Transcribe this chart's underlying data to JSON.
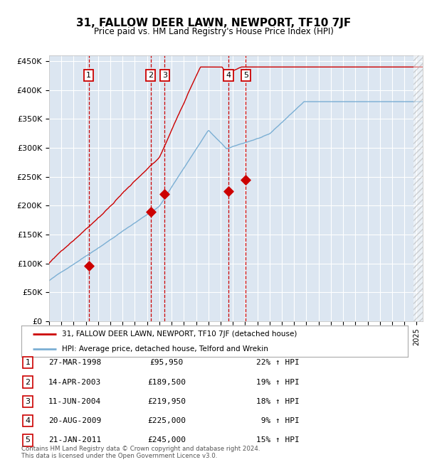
{
  "title": "31, FALLOW DEER LAWN, NEWPORT, TF10 7JF",
  "subtitle": "Price paid vs. HM Land Registry's House Price Index (HPI)",
  "footnote1": "Contains HM Land Registry data © Crown copyright and database right 2024.",
  "footnote2": "This data is licensed under the Open Government Licence v3.0.",
  "legend_red": "31, FALLOW DEER LAWN, NEWPORT, TF10 7JF (detached house)",
  "legend_blue": "HPI: Average price, detached house, Telford and Wrekin",
  "table": [
    {
      "num": "1",
      "date": "27-MAR-1998",
      "price": "£95,950",
      "hpi": "22% ↑ HPI"
    },
    {
      "num": "2",
      "date": "14-APR-2003",
      "price": "£189,500",
      "hpi": "19% ↑ HPI"
    },
    {
      "num": "3",
      "date": "11-JUN-2004",
      "price": "£219,950",
      "hpi": "18% ↑ HPI"
    },
    {
      "num": "4",
      "date": "20-AUG-2009",
      "price": "£225,000",
      "hpi": " 9% ↑ HPI"
    },
    {
      "num": "5",
      "date": "21-JAN-2011",
      "price": "£245,000",
      "hpi": "15% ↑ HPI"
    }
  ],
  "sale_dates_num": [
    1998.23,
    2003.28,
    2004.44,
    2009.64,
    2011.05
  ],
  "sale_prices": [
    95950,
    189500,
    219950,
    225000,
    245000
  ],
  "vline_dates": [
    1998.23,
    2003.28,
    2004.44,
    2009.64,
    2011.05
  ],
  "background_color": "#dce6f1",
  "plot_bg": "#dce6f1",
  "red_color": "#cc0000",
  "blue_color": "#7bafd4",
  "ylim": [
    0,
    460000
  ],
  "xlim_start": 1995.0,
  "xlim_end": 2025.5
}
